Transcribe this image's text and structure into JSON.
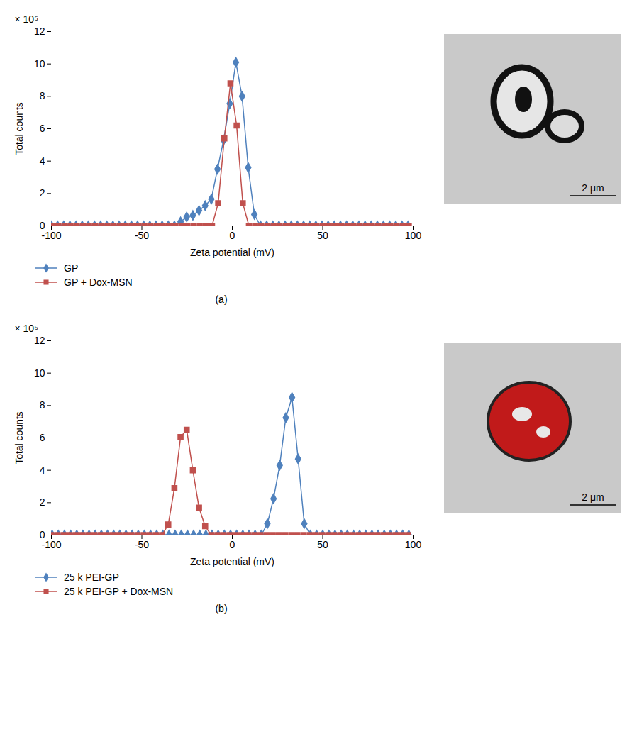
{
  "chart_data": [
    {
      "type": "line",
      "title": "(a)",
      "xlabel": "Zeta potential (mV)",
      "ylabel": "Total counts",
      "annotations": [
        "× 10⁵"
      ],
      "xlim": [
        -100,
        100
      ],
      "xticks": [
        -100,
        -50,
        0,
        50,
        100
      ],
      "ylim": [
        0,
        12
      ],
      "yticks": [
        0,
        2,
        4,
        6,
        8,
        10,
        12
      ],
      "grid": false,
      "legend": "bottom",
      "image": {
        "scale_bar": "2 μm"
      },
      "series": [
        {
          "name": "GP",
          "color": "#4f81bd",
          "marker": "diamond",
          "x": [
            -100,
            -96.6,
            -93.2,
            -89.8,
            -86.4,
            -83,
            -79.6,
            -76.2,
            -72.8,
            -69.4,
            -66,
            -62.6,
            -59.2,
            -55.8,
            -52.4,
            -49,
            -45.6,
            -42.2,
            -38.8,
            -35.4,
            -32,
            -28.6,
            -25.2,
            -21.8,
            -18.4,
            -15,
            -11.6,
            -8.2,
            -4.8,
            -1.4,
            2,
            5.4,
            8.8,
            12.2,
            15.6,
            19,
            22.4,
            25.8,
            29.2,
            32.6,
            36,
            39.4,
            42.8,
            46.2,
            49.6,
            53,
            56.4,
            59.8,
            63.2,
            66.6,
            70,
            73.4,
            76.8,
            80.2,
            83.6,
            87,
            90.4,
            93.8,
            97.2
          ],
          "values": [
            0,
            0,
            0,
            0,
            0,
            0,
            0,
            0,
            0,
            0,
            0,
            0,
            0,
            0,
            0,
            0,
            0,
            0,
            0,
            0,
            0,
            0.25,
            0.55,
            0.65,
            0.95,
            1.25,
            1.65,
            3.5,
            5.3,
            7.55,
            10.1,
            8.0,
            3.6,
            0.7,
            0,
            0,
            0,
            0,
            0,
            0,
            0,
            0,
            0,
            0,
            0,
            0,
            0,
            0,
            0,
            0,
            0,
            0,
            0,
            0,
            0,
            0,
            0,
            0,
            0
          ]
        },
        {
          "name": "GP + Dox-MSN",
          "color": "#c0504d",
          "marker": "square",
          "x": [
            -99.6,
            -96.2,
            -92.8,
            -89.4,
            -86,
            -82.6,
            -79.2,
            -75.8,
            -72.4,
            -69,
            -65.6,
            -62.2,
            -58.8,
            -55.4,
            -52,
            -48.6,
            -45.2,
            -41.8,
            -38.4,
            -35,
            -31.6,
            -28.2,
            -24.8,
            -21.4,
            -18,
            -14.6,
            -11.2,
            -7.8,
            -4.4,
            -1,
            2.4,
            5.8,
            9.2,
            12.6,
            16,
            19.4,
            22.8,
            26.2,
            29.6,
            33,
            36.4,
            39.8,
            43.2,
            46.6,
            50,
            53.4,
            56.8,
            60.2,
            63.6,
            67,
            70.4,
            73.8,
            77.2,
            80.6,
            84,
            87.4,
            90.8,
            94.2,
            97.6
          ],
          "values": [
            0,
            0,
            0,
            0,
            0,
            0,
            0,
            0,
            0,
            0,
            0,
            0,
            0,
            0,
            0,
            0,
            0,
            0,
            0,
            0,
            0,
            0,
            0,
            0,
            0,
            0,
            0,
            1.4,
            5.4,
            8.8,
            6.2,
            1.4,
            0,
            0,
            0,
            0,
            0,
            0,
            0,
            0,
            0,
            0,
            0,
            0,
            0,
            0,
            0,
            0,
            0,
            0,
            0,
            0,
            0,
            0,
            0,
            0,
            0,
            0,
            0
          ]
        }
      ]
    },
    {
      "type": "line",
      "title": "(b)",
      "xlabel": "Zeta potential (mV)",
      "ylabel": "Total counts",
      "annotations": [
        "× 10⁵"
      ],
      "xlim": [
        -100,
        100
      ],
      "xticks": [
        -100,
        -50,
        0,
        50,
        100
      ],
      "ylim": [
        0,
        12
      ],
      "yticks": [
        0,
        2,
        4,
        6,
        8,
        10,
        12
      ],
      "grid": false,
      "legend": "bottom",
      "image": {
        "scale_bar": "2 μm"
      },
      "series": [
        {
          "name": "25 k PEI-GP",
          "color": "#4f81bd",
          "marker": "diamond",
          "x": [
            -99.6,
            -96.2,
            -92.8,
            -89.4,
            -86,
            -82.6,
            -79.2,
            -75.8,
            -72.4,
            -69,
            -65.6,
            -62.2,
            -58.8,
            -55.4,
            -52,
            -48.6,
            -45.2,
            -41.8,
            -38.4,
            -35,
            -31.6,
            -28.2,
            -24.8,
            -21.4,
            -18,
            -14.6,
            -11.2,
            -7.8,
            -4.4,
            -1,
            2.4,
            5.8,
            9.2,
            12.6,
            16,
            19.4,
            22.8,
            26.2,
            29.6,
            33,
            36.4,
            39.8,
            43.2,
            46.6,
            50,
            53.4,
            56.8,
            60.2,
            63.6,
            67,
            70.4,
            73.8,
            77.2,
            80.6,
            84,
            87.4,
            90.8,
            94.2,
            97.6
          ],
          "values": [
            0,
            0,
            0,
            0,
            0,
            0,
            0,
            0,
            0,
            0,
            0,
            0,
            0,
            0,
            0,
            0,
            0,
            0,
            0,
            0,
            0,
            0,
            0,
            0,
            0,
            0,
            0,
            0,
            0,
            0,
            0,
            0,
            0,
            0,
            0,
            0.7,
            2.25,
            4.3,
            7.25,
            8.5,
            4.7,
            0.7,
            0,
            0,
            0,
            0,
            0,
            0,
            0,
            0,
            0,
            0,
            0,
            0,
            0,
            0,
            0,
            0,
            0
          ]
        },
        {
          "name": "25 k PEI-GP + Dox-MSN",
          "color": "#c0504d",
          "marker": "square",
          "x": [
            -100,
            -96.6,
            -93.2,
            -89.8,
            -86.4,
            -83,
            -79.6,
            -76.2,
            -72.8,
            -69.4,
            -66,
            -62.6,
            -59.2,
            -55.8,
            -52.4,
            -49,
            -45.6,
            -42.2,
            -38.8,
            -35.4,
            -32,
            -28.6,
            -25.2,
            -21.8,
            -18.4,
            -15,
            -11.6,
            -8.2,
            -4.8,
            -1.4,
            2,
            5.4,
            8.8,
            12.2,
            15.6,
            19,
            22.4,
            25.8,
            29.2,
            32.6,
            36,
            39.4,
            42.8,
            46.2,
            49.6,
            53,
            56.4,
            59.8,
            63.2,
            66.6,
            70,
            73.4,
            76.8,
            80.2,
            83.6,
            87,
            90.4,
            93.8,
            97.2
          ],
          "values": [
            0,
            0,
            0,
            0,
            0,
            0,
            0,
            0,
            0,
            0,
            0,
            0,
            0,
            0,
            0,
            0,
            0,
            0,
            0,
            0.65,
            2.9,
            6.05,
            6.5,
            4.0,
            1.7,
            0.55,
            0,
            0,
            0,
            0,
            0,
            0,
            0,
            0,
            0,
            0,
            0,
            0,
            0,
            0,
            0,
            0,
            0,
            0,
            0,
            0,
            0,
            0,
            0,
            0,
            0,
            0,
            0,
            0,
            0,
            0,
            0,
            0,
            0
          ]
        }
      ]
    }
  ]
}
